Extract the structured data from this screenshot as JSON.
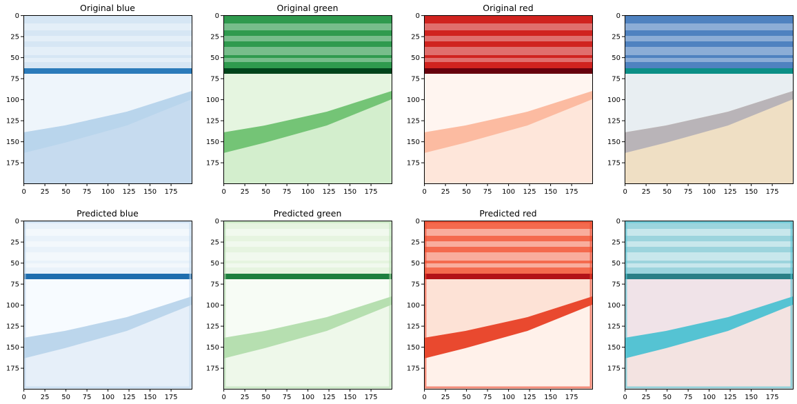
{
  "figure": {
    "x_ticks": [
      "0",
      "25",
      "50",
      "75",
      "100",
      "125",
      "150",
      "175"
    ],
    "y_ticks": [
      "0",
      "25",
      "50",
      "75",
      "100",
      "125",
      "150",
      "175"
    ],
    "axis_range": [
      0,
      199
    ],
    "panels": [
      {
        "title": "Original blue",
        "channel": "blue",
        "kind": "original",
        "colors": {
          "sky": "#d6e6f4",
          "sea": "#2b7bba",
          "foam": "#eef5fb",
          "shore": "#b9d5ec",
          "sand": "#c6dbef"
        }
      },
      {
        "title": "Original green",
        "channel": "green",
        "kind": "original",
        "colors": {
          "sky": "#2f9a4e",
          "sea": "#00441b",
          "foam": "#e5f5e0",
          "shore": "#74c476",
          "sand": "#d3eecd"
        }
      },
      {
        "title": "Original red",
        "channel": "red",
        "kind": "original",
        "colors": {
          "sky": "#d0231f",
          "sea": "#67000d",
          "foam": "#fff5f0",
          "shore": "#fcbba1",
          "sand": "#fee6da"
        }
      },
      {
        "title": "",
        "channel": "rgb",
        "kind": "original",
        "colors": {
          "sky": "#4f82c0",
          "sea": "#0c8f86",
          "foam": "#e8eef2",
          "shore": "#b9b4b8",
          "sand": "#efdfc4"
        }
      },
      {
        "title": "Predicted blue",
        "channel": "blue",
        "kind": "predicted",
        "colors": {
          "sky": "#e9f2fa",
          "sea": "#1f6eae",
          "foam": "#f7fbff",
          "shore": "#bcd6ec",
          "sand": "#e6eff9"
        }
      },
      {
        "title": "Predicted green",
        "channel": "green",
        "kind": "predicted",
        "colors": {
          "sky": "#e6f4e0",
          "sea": "#1d7f3e",
          "foam": "#f7fcf5",
          "shore": "#b6dfb0",
          "sand": "#eef8ea"
        }
      },
      {
        "title": "Predicted red",
        "channel": "red",
        "kind": "predicted",
        "colors": {
          "sky": "#f46a4e",
          "sea": "#b31218",
          "foam": "#fde2d6",
          "shore": "#e9492f",
          "sand": "#fff1ea"
        }
      },
      {
        "title": "",
        "channel": "rgb",
        "kind": "predicted",
        "colors": {
          "sky": "#9cd4dd",
          "sea": "#2a7f86",
          "foam": "#f0e3e8",
          "shore": "#55c3d3",
          "sand": "#f3e3e1"
        }
      }
    ]
  }
}
